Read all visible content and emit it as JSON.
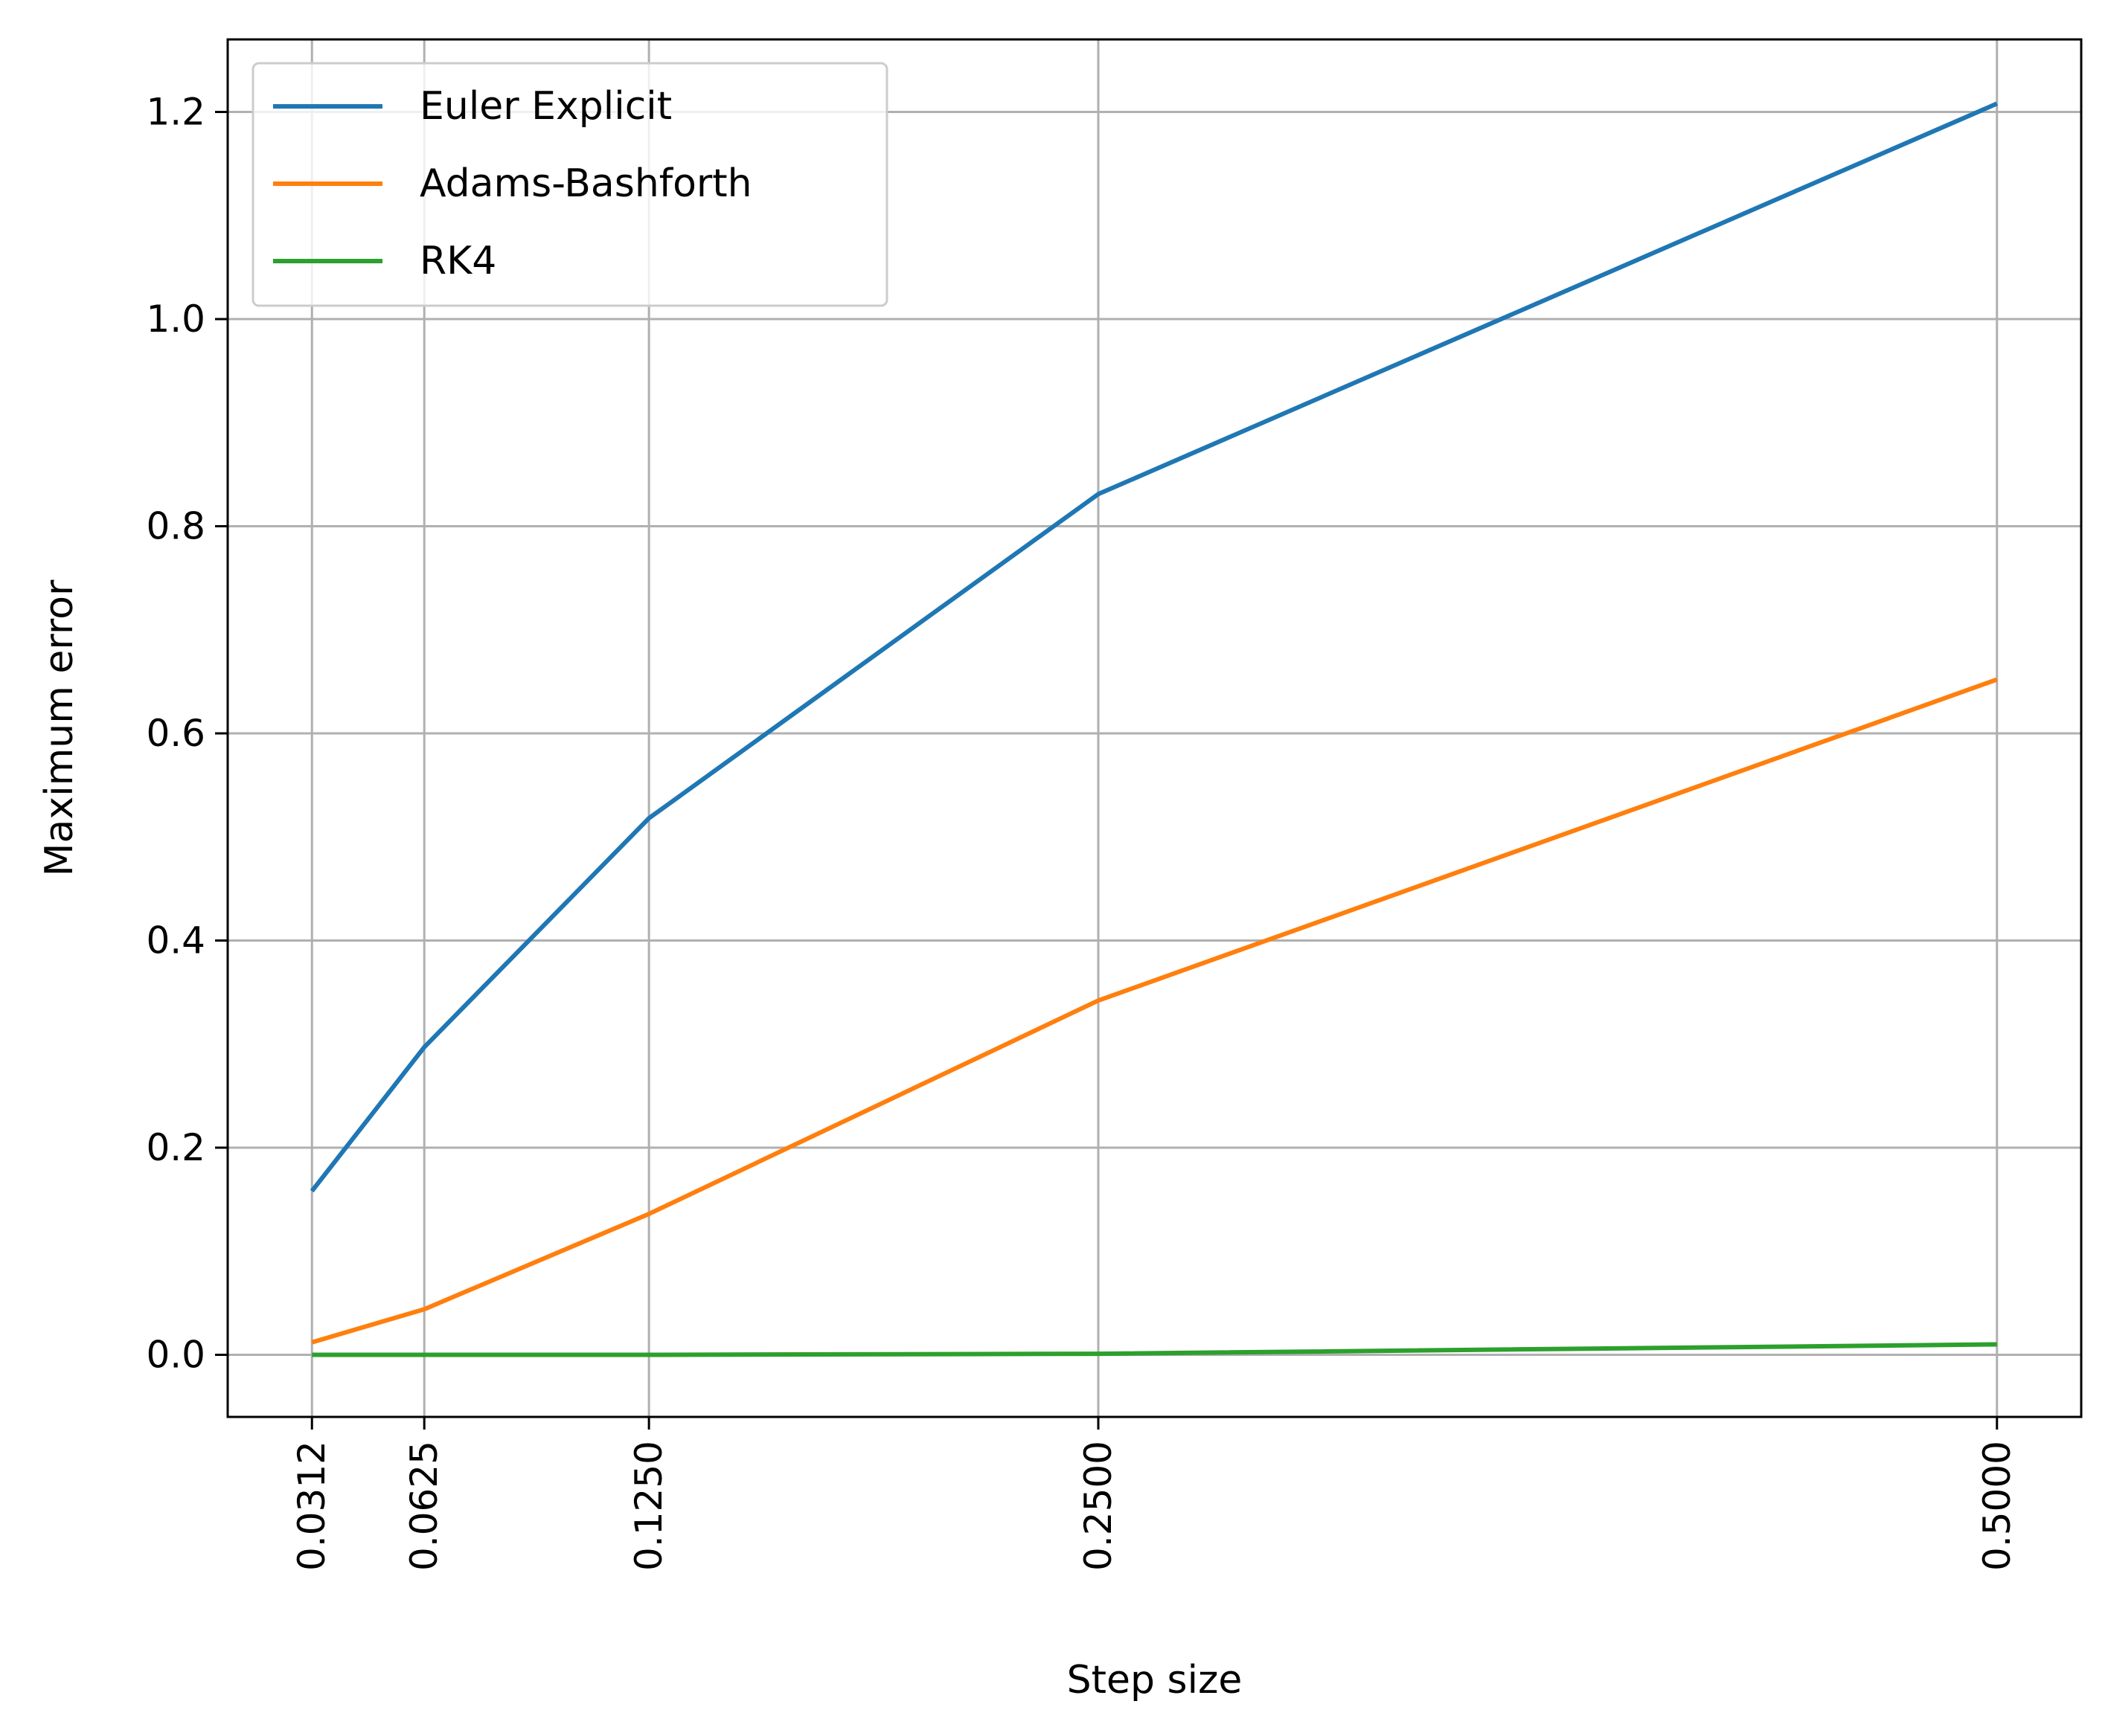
{
  "chart_data": {
    "type": "line",
    "xlabel": "Step size",
    "ylabel": "Maximum error",
    "x": [
      0.03125,
      0.0625,
      0.125,
      0.25,
      0.5
    ],
    "xtick_labels": [
      "0.0312",
      "0.0625",
      "0.1250",
      "0.2500",
      "0.5000"
    ],
    "xlim": [
      0.00781,
      0.52344
    ],
    "ylim": [
      -0.06,
      1.27
    ],
    "yticks": [
      0.0,
      0.2,
      0.4,
      0.6,
      0.8,
      1.0,
      1.2
    ],
    "ytick_labels": [
      "0.0",
      "0.2",
      "0.4",
      "0.6",
      "0.8",
      "1.0",
      "1.2"
    ],
    "grid": true,
    "legend_position": "top-left",
    "series": [
      {
        "name": "Euler Explicit",
        "color": "#1f77b4",
        "values": [
          0.158,
          0.297,
          0.518,
          0.831,
          1.208
        ]
      },
      {
        "name": "Adams-Bashforth",
        "color": "#ff7f0e",
        "values": [
          0.012,
          0.044,
          0.136,
          0.342,
          0.652
        ]
      },
      {
        "name": "RK4",
        "color": "#2ca02c",
        "values": [
          0.0,
          0.0,
          0.0,
          0.001,
          0.01
        ]
      }
    ]
  }
}
